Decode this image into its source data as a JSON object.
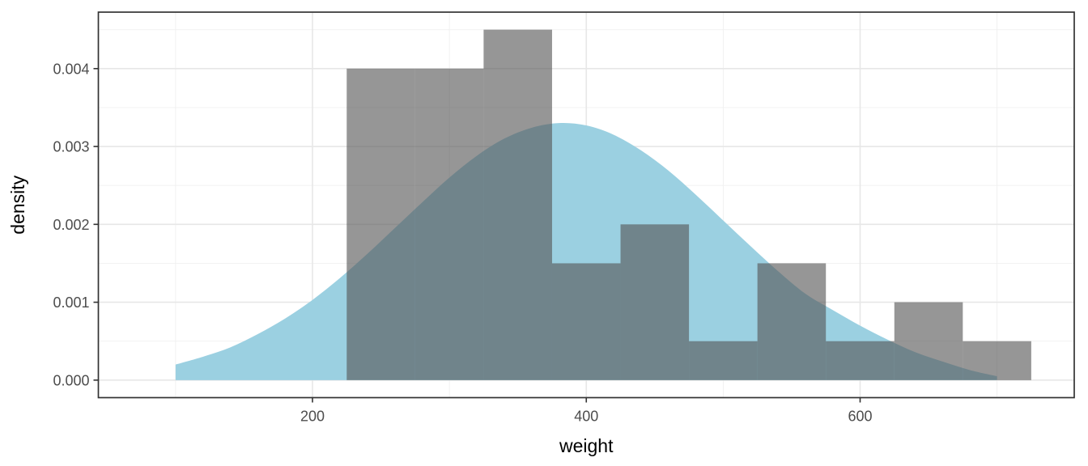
{
  "figure": {
    "background": "#ffffff"
  },
  "chart_data": {
    "type": "histogram",
    "subtype": "histogram_with_density_overlay",
    "title": "",
    "xlabel": "weight",
    "ylabel": "density",
    "xlim": [
      43.6,
      756.4
    ],
    "ylim": [
      -0.000225,
      0.004725
    ],
    "x_major_ticks": [
      200,
      400,
      600
    ],
    "x_tick_labels": [
      "200",
      "400",
      "600"
    ],
    "x_minor_gridlines": [
      100,
      300,
      500,
      700
    ],
    "y_major_ticks": [
      0,
      0.001,
      0.002,
      0.003,
      0.004
    ],
    "y_tick_labels": [
      "0.000",
      "0.001",
      "0.002",
      "0.003",
      "0.004"
    ],
    "y_minor_gridlines": [
      0.0005,
      0.0015,
      0.0025,
      0.0035,
      0.0045
    ],
    "grid": true,
    "legend": "none",
    "histogram": {
      "binwidth": 50,
      "bin_edges": [
        225,
        275,
        325,
        375,
        425,
        475,
        525,
        575,
        625,
        675,
        725
      ],
      "bin_densities": [
        0.004,
        0.004,
        0.0045,
        0.0015,
        0.002,
        0.0005,
        0.0015,
        0.0005,
        0.001,
        0.0005
      ],
      "fill": "rgba(85,85,85,0.62)"
    },
    "density_curve": {
      "fill": "#9BD0E1",
      "points": [
        [
          100,
          0.0002
        ],
        [
          120,
          0.0003
        ],
        [
          140,
          0.00042
        ],
        [
          160,
          0.00059
        ],
        [
          180,
          0.00079
        ],
        [
          200,
          0.00103
        ],
        [
          220,
          0.00131
        ],
        [
          240,
          0.00162
        ],
        [
          260,
          0.00195
        ],
        [
          280,
          0.00228
        ],
        [
          300,
          0.0026
        ],
        [
          320,
          0.00288
        ],
        [
          340,
          0.0031
        ],
        [
          360,
          0.00324
        ],
        [
          380,
          0.0033
        ],
        [
          400,
          0.00327
        ],
        [
          420,
          0.00315
        ],
        [
          440,
          0.00295
        ],
        [
          460,
          0.00269
        ],
        [
          480,
          0.00238
        ],
        [
          500,
          0.00205
        ],
        [
          520,
          0.00172
        ],
        [
          540,
          0.0014
        ],
        [
          560,
          0.00111
        ],
        [
          580,
          0.0009
        ],
        [
          600,
          0.0007
        ],
        [
          620,
          0.00052
        ],
        [
          640,
          0.00036
        ],
        [
          660,
          0.00024
        ],
        [
          680,
          0.00013
        ],
        [
          700,
          5e-05
        ]
      ]
    },
    "colors": {
      "panel_background": "#ffffff",
      "panel_border": "#333333",
      "major_grid": "#E7E7E7",
      "minor_grid": "#F0F0F0",
      "tick_mark": "#333333",
      "tick_label": "#4D4D4D",
      "axis_title": "#000000"
    }
  }
}
